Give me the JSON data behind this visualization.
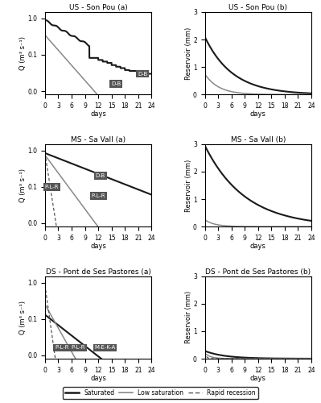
{
  "titles_a": [
    "US - Son Pou (a)",
    "MS - Sa Vall (a)",
    "DS - Pont de Ses Pastores (a)"
  ],
  "titles_b": [
    "US - Son Pou (b)",
    "MS - Sa Vall (b)",
    "DS - Pont de Ses Pastores (b)"
  ],
  "xlabel": "days",
  "ylabel_a": "Q (m³ s⁻¹)",
  "ylabel_b": "Reservoir (mm)",
  "x_ticks": [
    0,
    3,
    6,
    9,
    12,
    15,
    18,
    21,
    24
  ],
  "xlim": [
    0,
    24
  ],
  "ylim_b": [
    0,
    3
  ],
  "colors": {
    "saturated": "#1a1a1a",
    "low_sat": "#888888",
    "rapid": "#555555"
  },
  "legend_items": [
    "Saturated",
    "Low saturation",
    "Rapid recession"
  ]
}
